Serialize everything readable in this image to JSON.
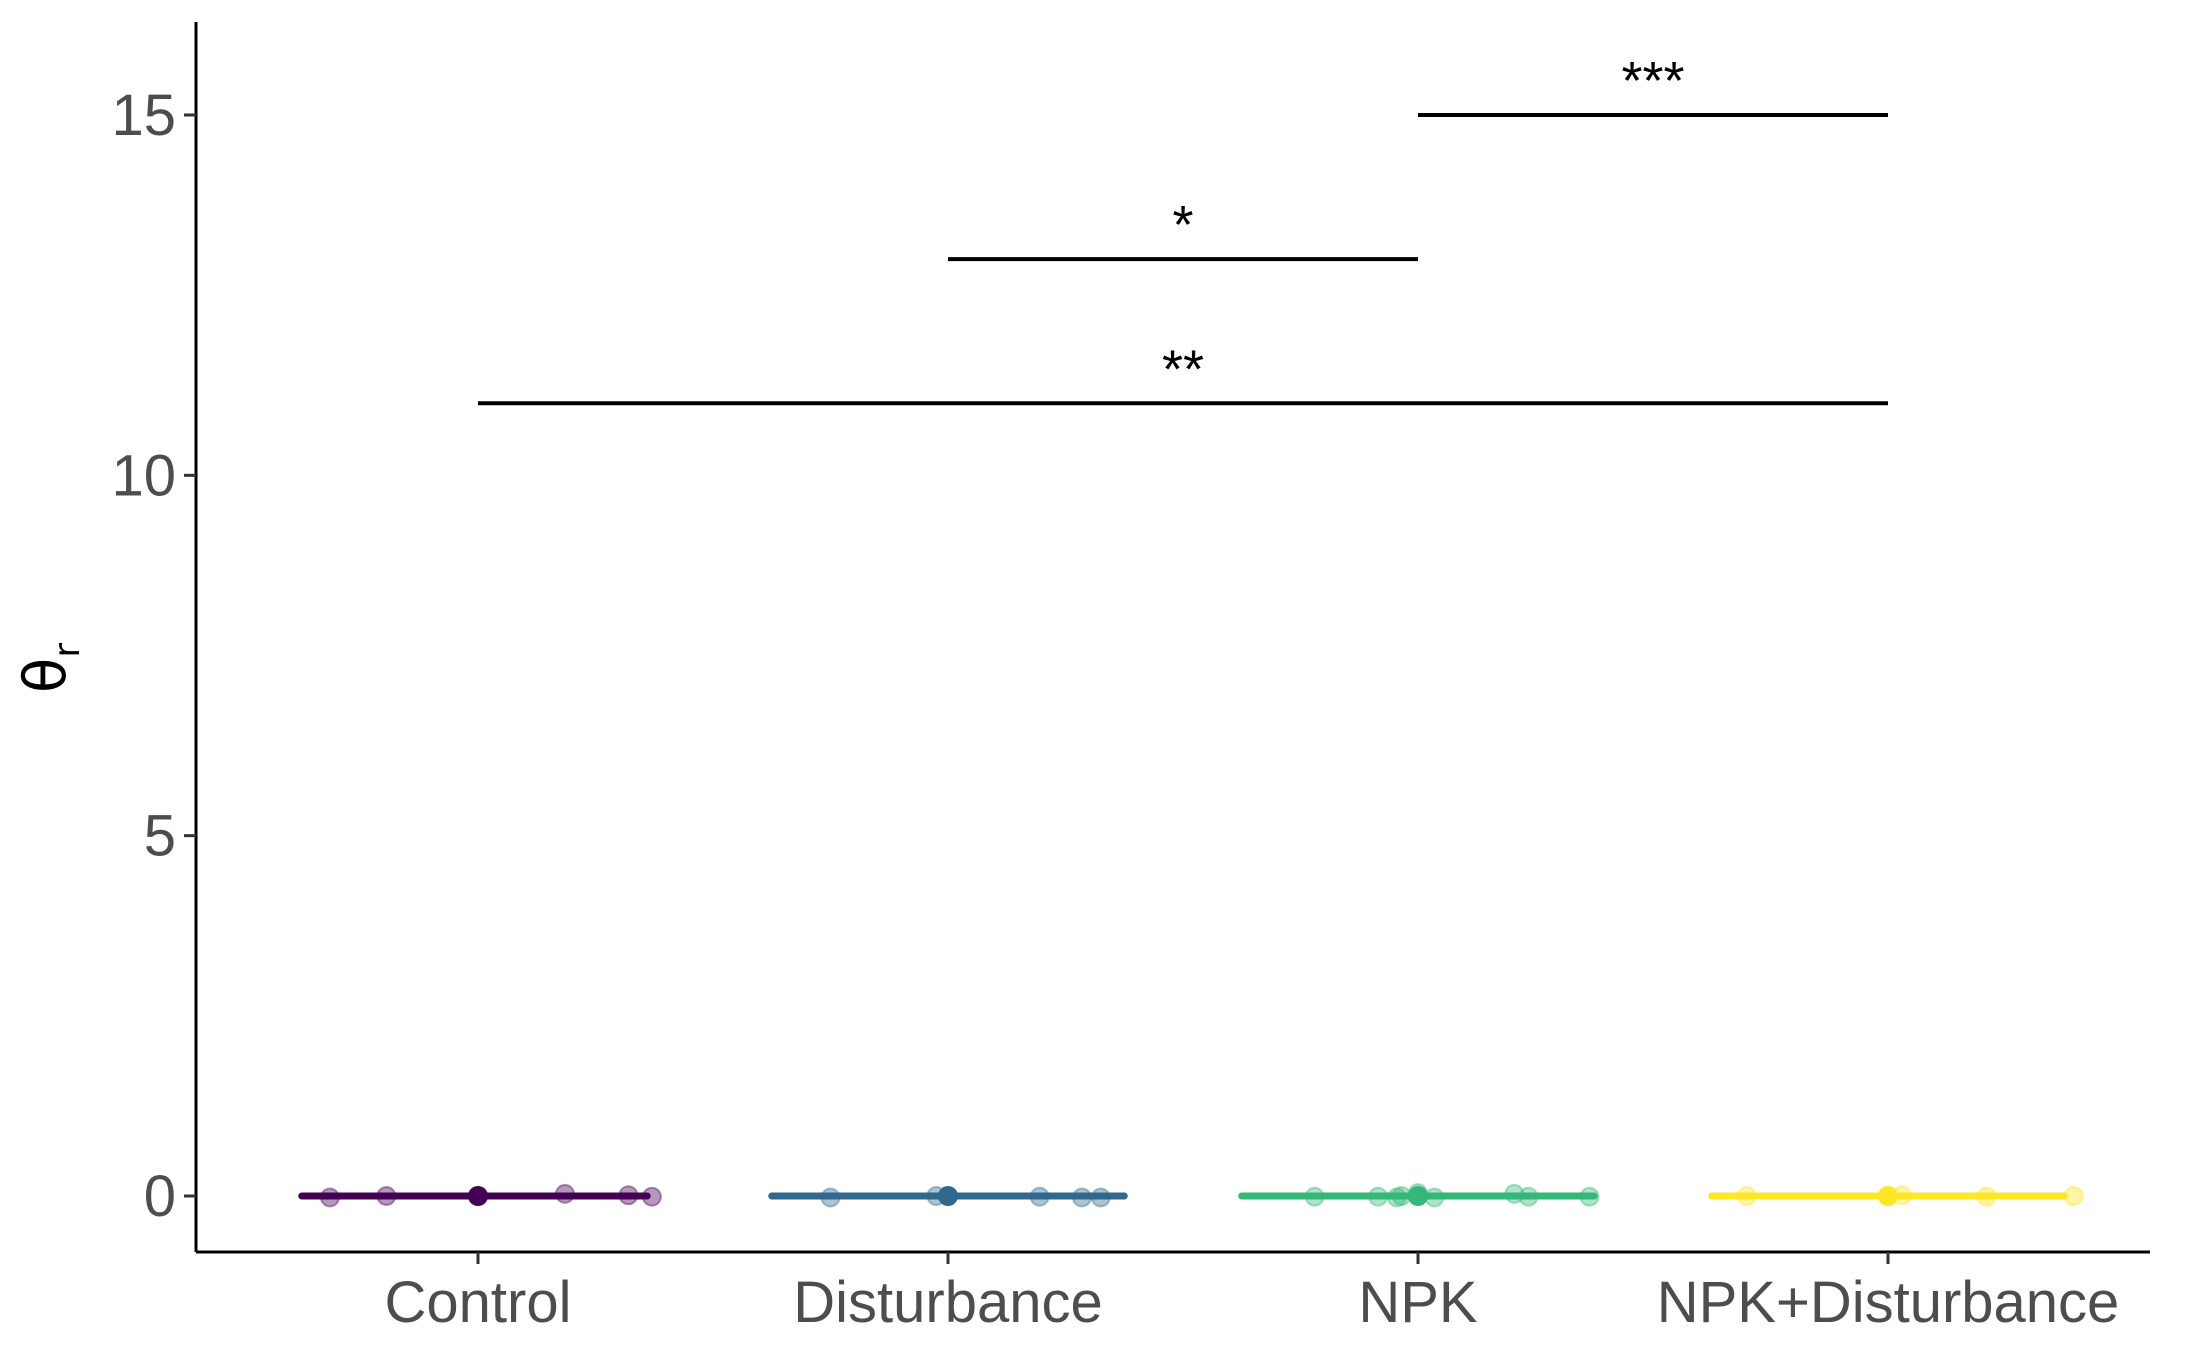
{
  "chart_data": {
    "type": "scatter",
    "title": "",
    "xlabel": "",
    "ylabel": "θ",
    "ylabel_subscript": "r",
    "categories": [
      "Control",
      "Disturbance",
      "NPK",
      "NPK+Disturbance"
    ],
    "ylim": [
      -0.8,
      16.3
    ],
    "yticks": [
      0,
      5,
      10,
      15
    ],
    "grid": false,
    "legend": "none",
    "series": [
      {
        "category": "Control",
        "color": "#440154",
        "range": [
          -0.75,
          0.72
        ],
        "points": [
          {
            "x": -0.63,
            "y": -0.02
          },
          {
            "x": -0.39,
            "y": 0.0
          },
          {
            "x": 0.37,
            "y": 0.03
          },
          {
            "x": 0.64,
            "y": 0.01
          },
          {
            "x": 0.74,
            "y": -0.01
          }
        ]
      },
      {
        "category": "Disturbance",
        "color": "#31688e",
        "range": [
          -0.75,
          0.75
        ],
        "points": [
          {
            "x": -0.5,
            "y": -0.02
          },
          {
            "x": -0.05,
            "y": 0.0
          },
          {
            "x": 0.39,
            "y": -0.01
          },
          {
            "x": 0.57,
            "y": -0.02
          },
          {
            "x": 0.65,
            "y": -0.02
          }
        ]
      },
      {
        "category": "NPK",
        "color": "#35b779",
        "range": [
          -0.75,
          0.75
        ],
        "points": [
          {
            "x": -0.44,
            "y": -0.01
          },
          {
            "x": -0.17,
            "y": -0.01
          },
          {
            "x": -0.09,
            "y": -0.02
          },
          {
            "x": -0.07,
            "y": 0.0
          },
          {
            "x": 0.0,
            "y": 0.04
          },
          {
            "x": 0.07,
            "y": -0.02
          },
          {
            "x": 0.41,
            "y": 0.03
          },
          {
            "x": 0.47,
            "y": -0.01
          },
          {
            "x": 0.73,
            "y": -0.01
          }
        ]
      },
      {
        "category": "NPK+Disturbance",
        "color": "#fde725",
        "range": [
          -0.75,
          0.75
        ],
        "points": [
          {
            "x": -0.6,
            "y": 0.0
          },
          {
            "x": 0.0,
            "y": 0.0
          },
          {
            "x": 0.06,
            "y": 0.01
          },
          {
            "x": 0.42,
            "y": -0.01
          },
          {
            "x": 0.79,
            "y": 0.0
          }
        ]
      }
    ],
    "significance": [
      {
        "from": "Control",
        "to": "NPK+Disturbance",
        "y": 11.0,
        "label": "**"
      },
      {
        "from": "Disturbance",
        "to": "NPK",
        "y": 13.0,
        "label": "*"
      },
      {
        "from": "NPK",
        "to": "NPK+Disturbance",
        "y": 15.0,
        "label": "***"
      }
    ]
  }
}
